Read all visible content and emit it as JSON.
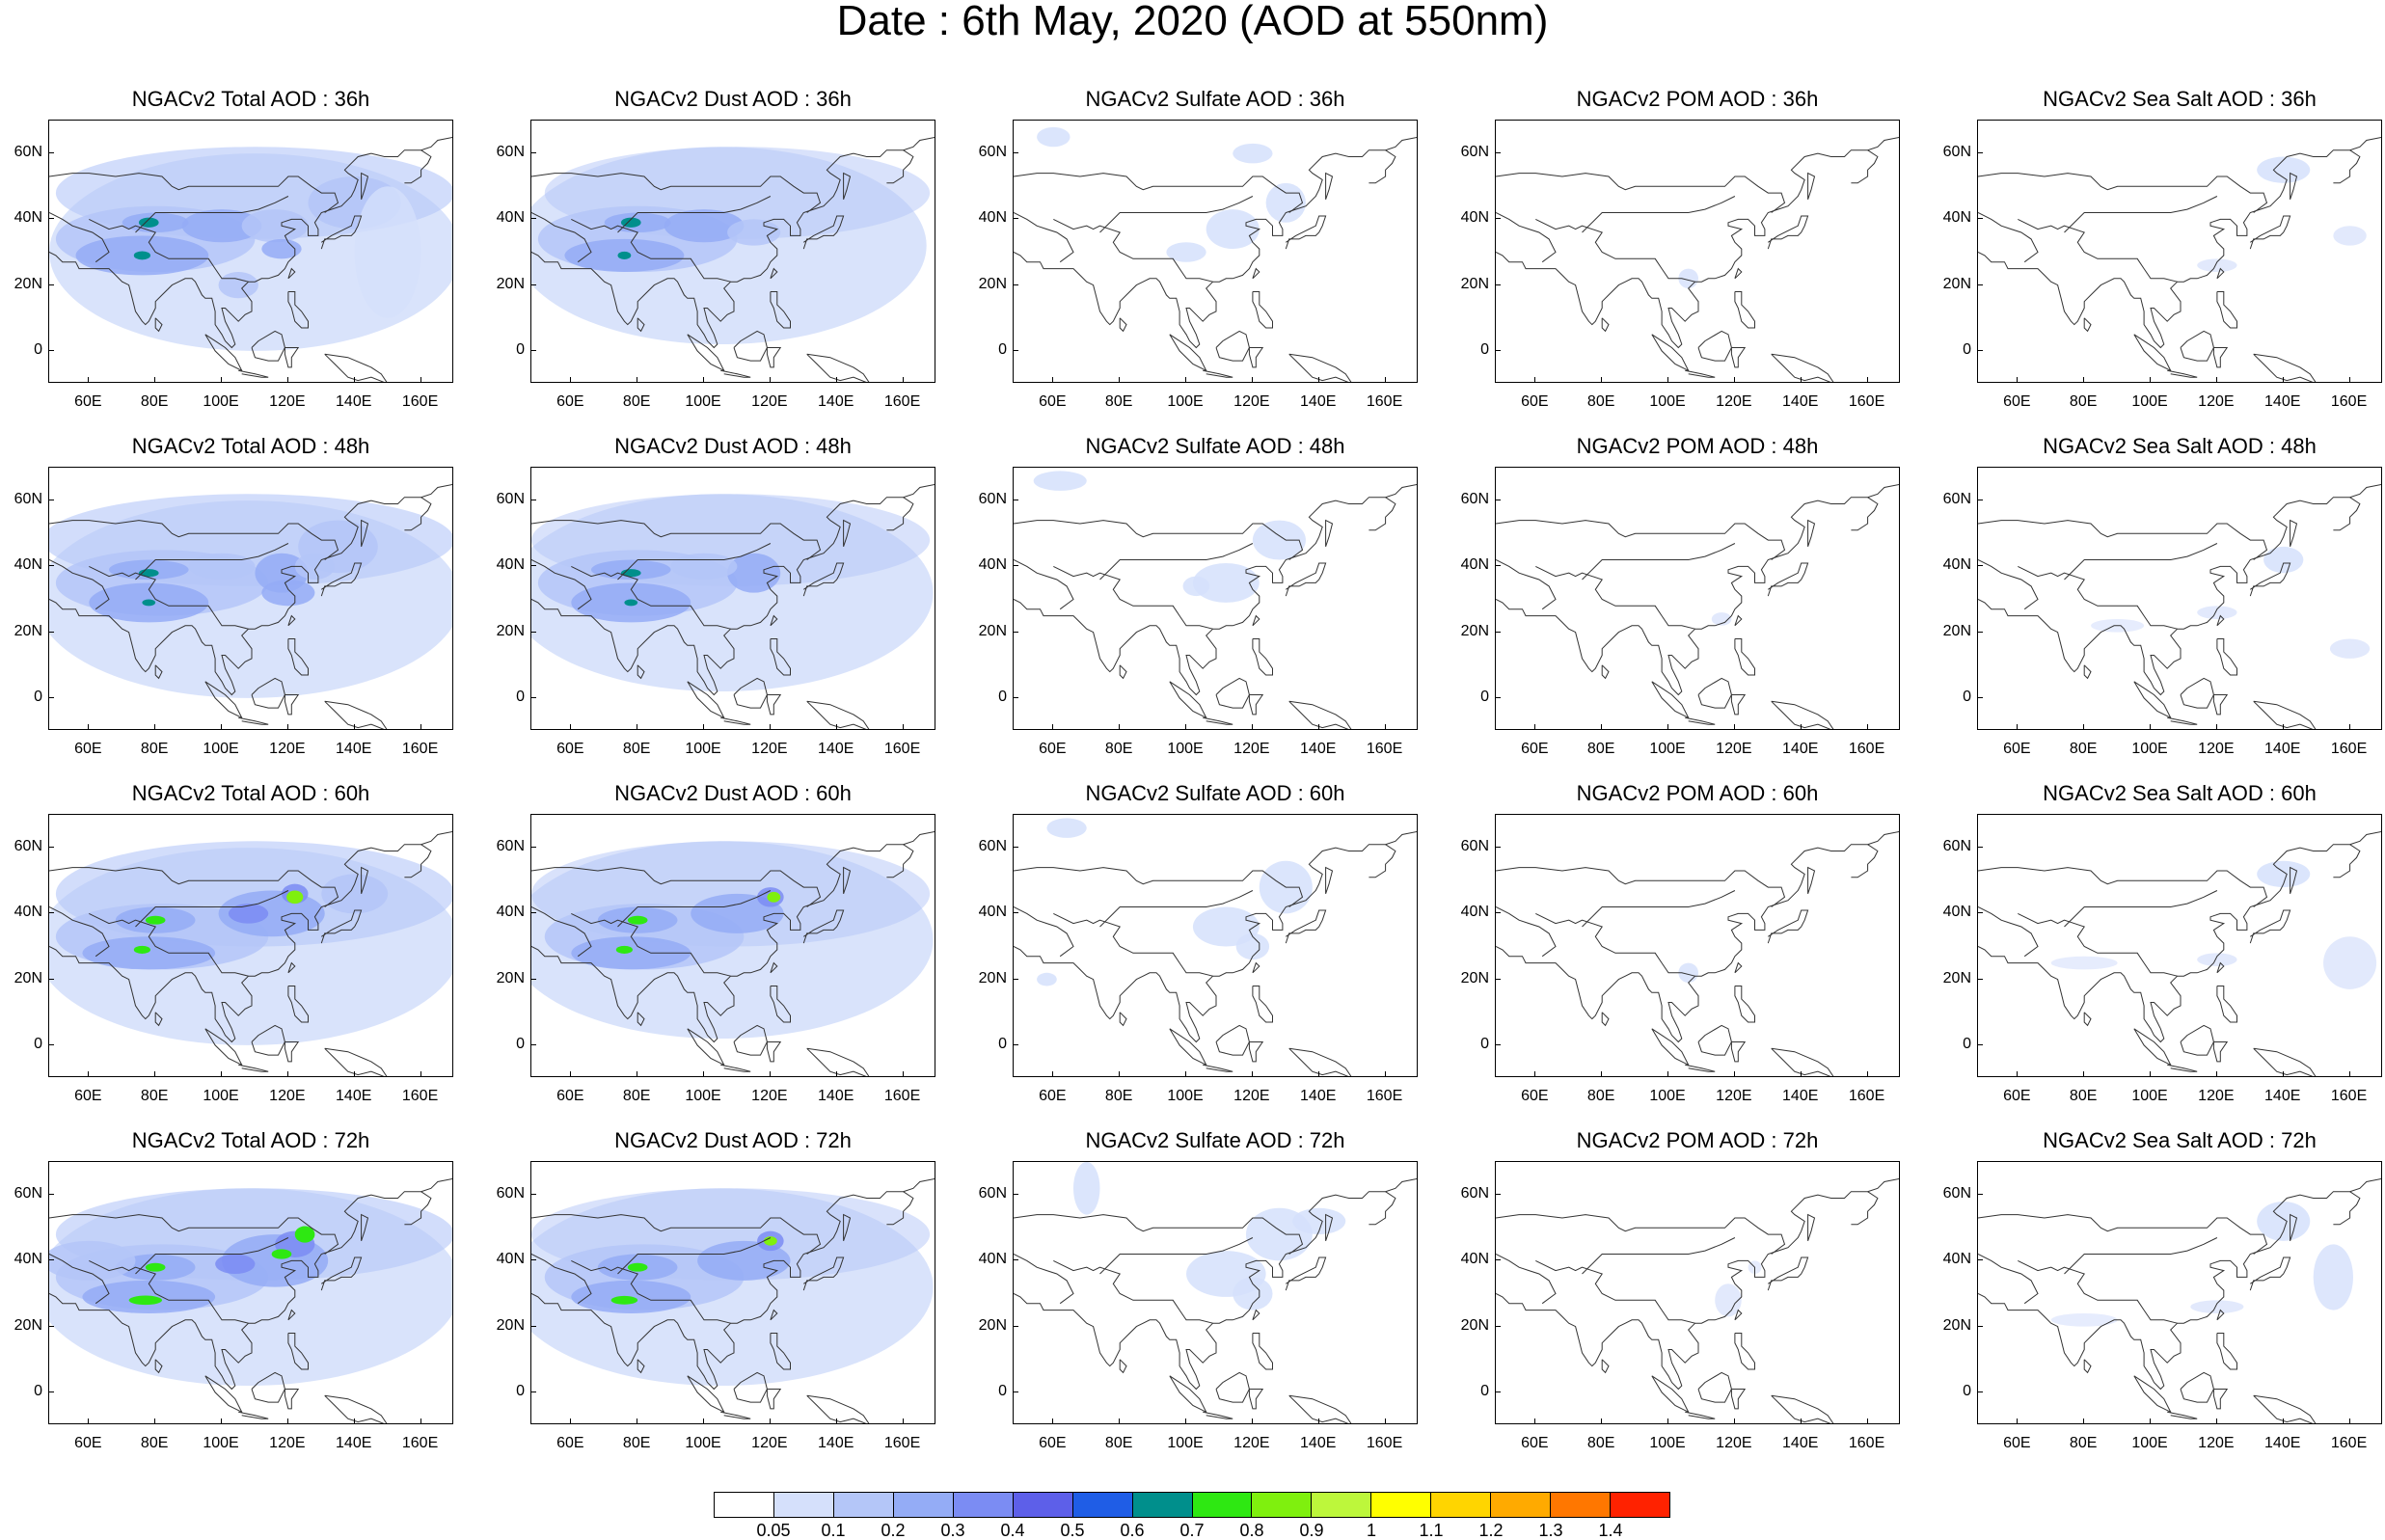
{
  "title": "Date : 6th May, 2020 (AOD at 550nm)",
  "panels": [
    {
      "title": "NGACv2 Total AOD : 36h",
      "product": "total",
      "hour": "36h"
    },
    {
      "title": "NGACv2 Dust AOD : 36h",
      "product": "dust",
      "hour": "36h"
    },
    {
      "title": "NGACv2 Sulfate AOD : 36h",
      "product": "sulfate",
      "hour": "36h"
    },
    {
      "title": "NGACv2 POM AOD : 36h",
      "product": "pom",
      "hour": "36h"
    },
    {
      "title": "NGACv2 Sea Salt AOD : 36h",
      "product": "seasalt",
      "hour": "36h"
    },
    {
      "title": "NGACv2 Total AOD : 48h",
      "product": "total",
      "hour": "48h"
    },
    {
      "title": "NGACv2 Dust AOD : 48h",
      "product": "dust",
      "hour": "48h"
    },
    {
      "title": "NGACv2 Sulfate AOD : 48h",
      "product": "sulfate",
      "hour": "48h"
    },
    {
      "title": "NGACv2 POM AOD : 48h",
      "product": "pom",
      "hour": "48h"
    },
    {
      "title": "NGACv2 Sea Salt AOD : 48h",
      "product": "seasalt",
      "hour": "48h"
    },
    {
      "title": "NGACv2 Total AOD : 60h",
      "product": "total",
      "hour": "60h"
    },
    {
      "title": "NGACv2 Dust AOD : 60h",
      "product": "dust",
      "hour": "60h"
    },
    {
      "title": "NGACv2 Sulfate AOD : 60h",
      "product": "sulfate",
      "hour": "60h"
    },
    {
      "title": "NGACv2 POM AOD : 60h",
      "product": "pom",
      "hour": "60h"
    },
    {
      "title": "NGACv2 Sea Salt AOD : 60h",
      "product": "seasalt",
      "hour": "60h"
    },
    {
      "title": "NGACv2 Total AOD : 72h",
      "product": "total",
      "hour": "72h"
    },
    {
      "title": "NGACv2 Dust AOD : 72h",
      "product": "dust",
      "hour": "72h"
    },
    {
      "title": "NGACv2 Sulfate AOD : 72h",
      "product": "sulfate",
      "hour": "72h"
    },
    {
      "title": "NGACv2 POM AOD : 72h",
      "product": "pom",
      "hour": "72h"
    },
    {
      "title": "NGACv2 Sea Salt  AOD : 72h",
      "product": "seasalt",
      "hour": "72h"
    }
  ],
  "map_extent": {
    "lon_min": 48,
    "lon_max": 170,
    "lat_min": -10,
    "lat_max": 70
  },
  "lat_ticks": [
    {
      "value": 60,
      "label": "60N"
    },
    {
      "value": 40,
      "label": "40N"
    },
    {
      "value": 20,
      "label": "20N"
    },
    {
      "value": 0,
      "label": "0"
    }
  ],
  "lon_ticks": [
    {
      "value": 60,
      "label": "60E"
    },
    {
      "value": 80,
      "label": "80E"
    },
    {
      "value": 100,
      "label": "100E"
    },
    {
      "value": 120,
      "label": "120E"
    },
    {
      "value": 140,
      "label": "140E"
    },
    {
      "value": 160,
      "label": "160E"
    }
  ],
  "colorbar": {
    "colors": [
      "#ffffff",
      "#d5e0fb",
      "#b4c6f8",
      "#94acf6",
      "#7b8cf3",
      "#5d5fe9",
      "#1f5de6",
      "#008f8c",
      "#2ee812",
      "#7ff00e",
      "#bdf73b",
      "#ffff00",
      "#ffd500",
      "#ffaa00",
      "#ff7700",
      "#ff2200"
    ],
    "labels": [
      "0.05",
      "0.1",
      "0.2",
      "0.3",
      "0.4",
      "0.5",
      "0.6",
      "0.7",
      "0.8",
      "0.9",
      "1",
      "1.1",
      "1.2",
      "1.3",
      "1.4"
    ]
  }
}
